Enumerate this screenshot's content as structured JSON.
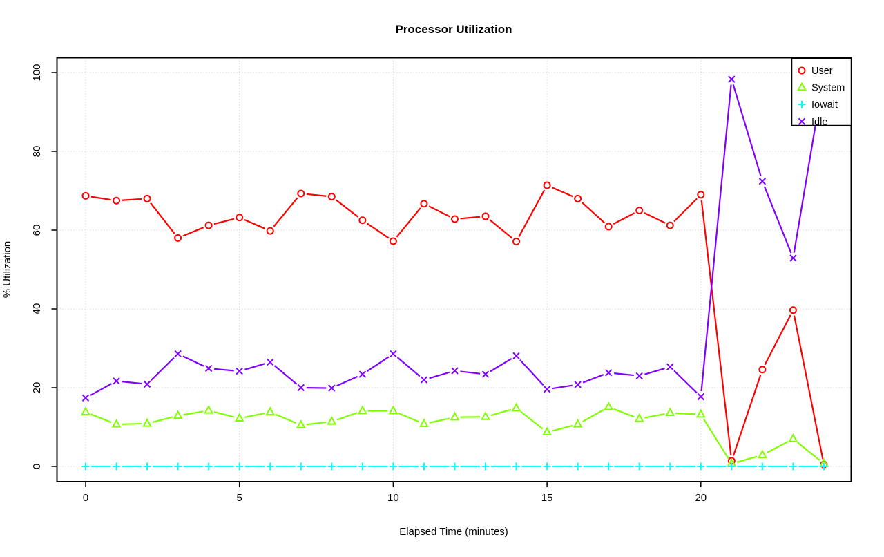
{
  "title": "Processor Utilization",
  "chart_data": {
    "type": "line",
    "title": "Processor Utilization",
    "xlabel": "Elapsed Time (minutes)",
    "ylabel": "% Utilization",
    "x": [
      0,
      1,
      2,
      3,
      4,
      5,
      6,
      7,
      8,
      9,
      10,
      11,
      12,
      13,
      14,
      15,
      16,
      17,
      18,
      19,
      20,
      21,
      22,
      23,
      24
    ],
    "x_ticks": [
      0,
      5,
      10,
      15,
      20
    ],
    "y_ticks": [
      0,
      20,
      40,
      60,
      80,
      100
    ],
    "xlim": [
      -0.95,
      24.95
    ],
    "ylim": [
      -4,
      104
    ],
    "grid": true,
    "legend_position": "top-right",
    "legend_labels": [
      "User",
      "System",
      "Iowait",
      "Idle"
    ],
    "series": [
      {
        "name": "User",
        "color": "#ff0000",
        "marker": "circle",
        "values": [
          68.7,
          67.5,
          68.0,
          58.0,
          61.2,
          63.2,
          59.8,
          69.3,
          68.5,
          62.5,
          57.2,
          66.7,
          62.8,
          63.5,
          57.1,
          71.4,
          68.0,
          60.9,
          65.0,
          61.2,
          69.0,
          1.4,
          24.6,
          39.7,
          0.5
        ]
      },
      {
        "name": "System",
        "color": "#80ff00",
        "marker": "triangle",
        "values": [
          13.8,
          10.7,
          10.9,
          12.9,
          14.2,
          12.2,
          13.8,
          10.5,
          11.4,
          14.1,
          14.1,
          10.8,
          12.5,
          12.6,
          14.8,
          8.7,
          10.7,
          15.1,
          12.1,
          13.6,
          13.2,
          0.7,
          2.9,
          7.0,
          0.7
        ]
      },
      {
        "name": "Iowait",
        "color": "#00ffff",
        "marker": "plus",
        "values": [
          0,
          0,
          0,
          0,
          0,
          0,
          0,
          0,
          0,
          0,
          0,
          0,
          0,
          0,
          0,
          0,
          0,
          0,
          0,
          0,
          0,
          0,
          0,
          0,
          0
        ]
      },
      {
        "name": "Idle",
        "color": "#8000ff",
        "marker": "x",
        "values": [
          17.4,
          21.7,
          20.9,
          28.6,
          24.9,
          24.2,
          26.5,
          20.0,
          19.9,
          23.4,
          28.6,
          22.0,
          24.3,
          23.4,
          28.1,
          19.6,
          20.8,
          23.8,
          23.0,
          25.3,
          17.7,
          98.3,
          72.4,
          52.9,
          99.3
        ]
      }
    ]
  }
}
